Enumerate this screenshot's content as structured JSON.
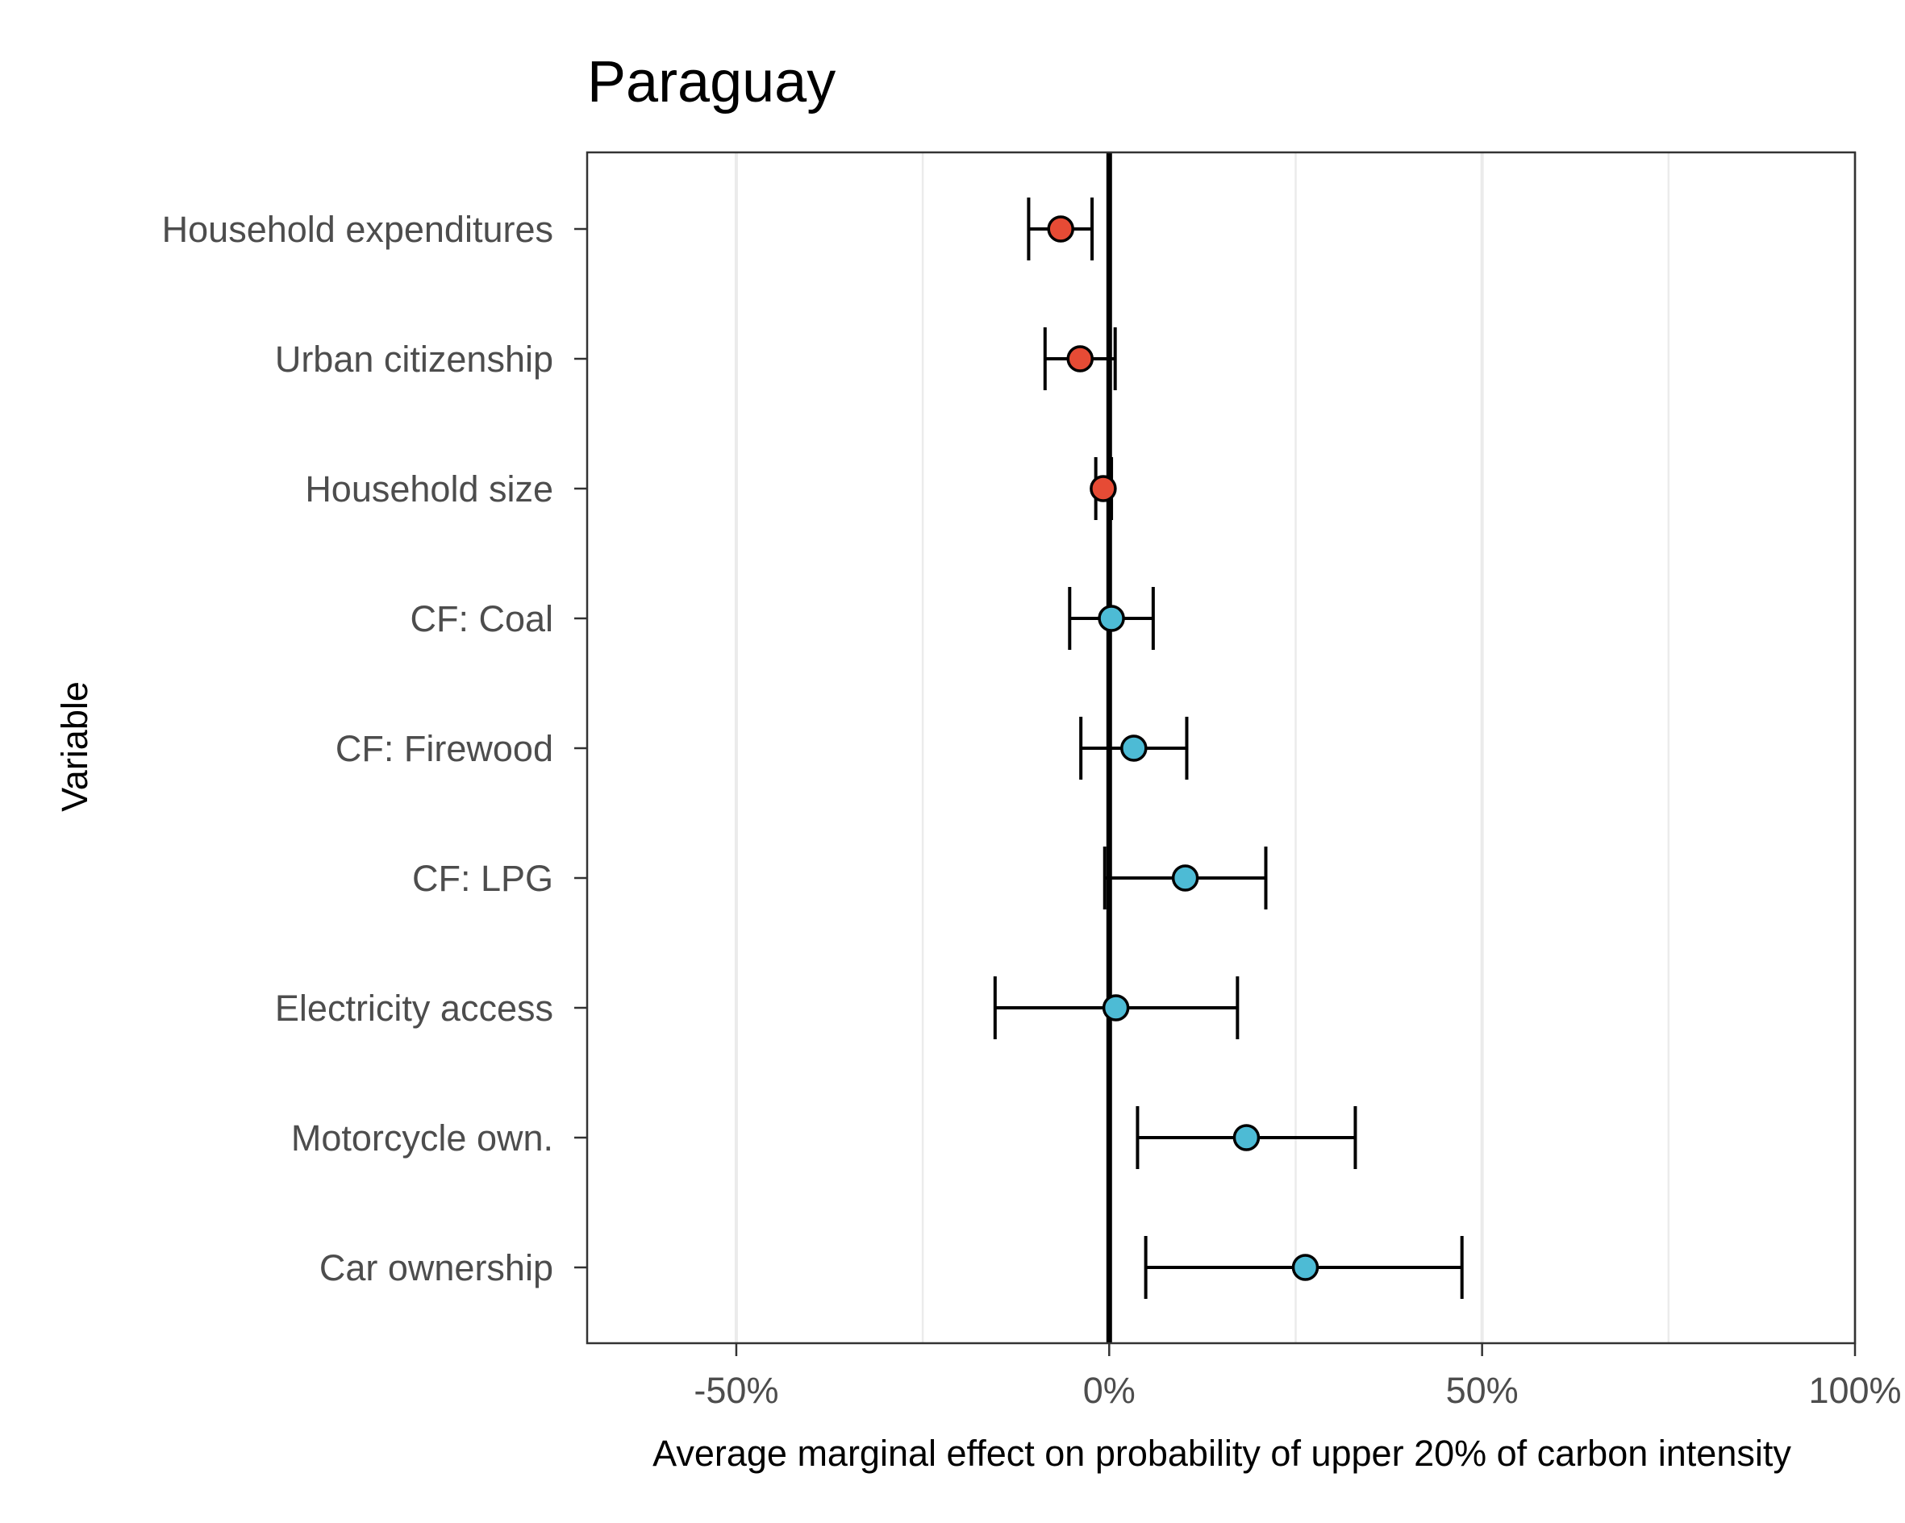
{
  "chart_data": {
    "type": "scatter",
    "title": "Paraguay",
    "xlabel": "Average marginal effect on probability of upper 20% of carbon intensity",
    "ylabel": "Variable",
    "xlim": [
      -70,
      100
    ],
    "x_ticks": [
      -50,
      0,
      50,
      100
    ],
    "x_tick_labels": [
      "-50%",
      "0%",
      "50%",
      "100%"
    ],
    "grid": "vertical-major-and-minor",
    "reference_line": 0,
    "colors": {
      "negative": "#E64B35",
      "positive": "#4DBBD5"
    },
    "categories": [
      "Household expenditures",
      "Urban citizenship",
      "Household size",
      "CF: Coal",
      "CF: Firewood",
      "CF: LPG",
      "Electricity access",
      "Motorcycle own.",
      "Car ownership"
    ],
    "estimates": [
      {
        "variable": "Household expenditures",
        "value": -6.5,
        "low": -10.8,
        "high": -2.3,
        "sign": "negative"
      },
      {
        "variable": "Urban citizenship",
        "value": -3.9,
        "low": -8.6,
        "high": 0.8,
        "sign": "negative"
      },
      {
        "variable": "Household size",
        "value": -0.8,
        "low": -1.8,
        "high": 0.3,
        "sign": "negative"
      },
      {
        "variable": "CF: Coal",
        "value": 0.3,
        "low": -5.3,
        "high": 5.9,
        "sign": "positive"
      },
      {
        "variable": "CF: Firewood",
        "value": 3.3,
        "low": -3.8,
        "high": 10.4,
        "sign": "positive"
      },
      {
        "variable": "CF: LPG",
        "value": 10.2,
        "low": -0.6,
        "high": 21.0,
        "sign": "positive"
      },
      {
        "variable": "Electricity access",
        "value": 0.9,
        "low": -15.3,
        "high": 17.2,
        "sign": "positive"
      },
      {
        "variable": "Motorcycle own.",
        "value": 18.4,
        "low": 3.8,
        "high": 33.0,
        "sign": "positive"
      },
      {
        "variable": "Car ownership",
        "value": 26.3,
        "low": 4.9,
        "high": 47.3,
        "sign": "positive"
      }
    ]
  }
}
